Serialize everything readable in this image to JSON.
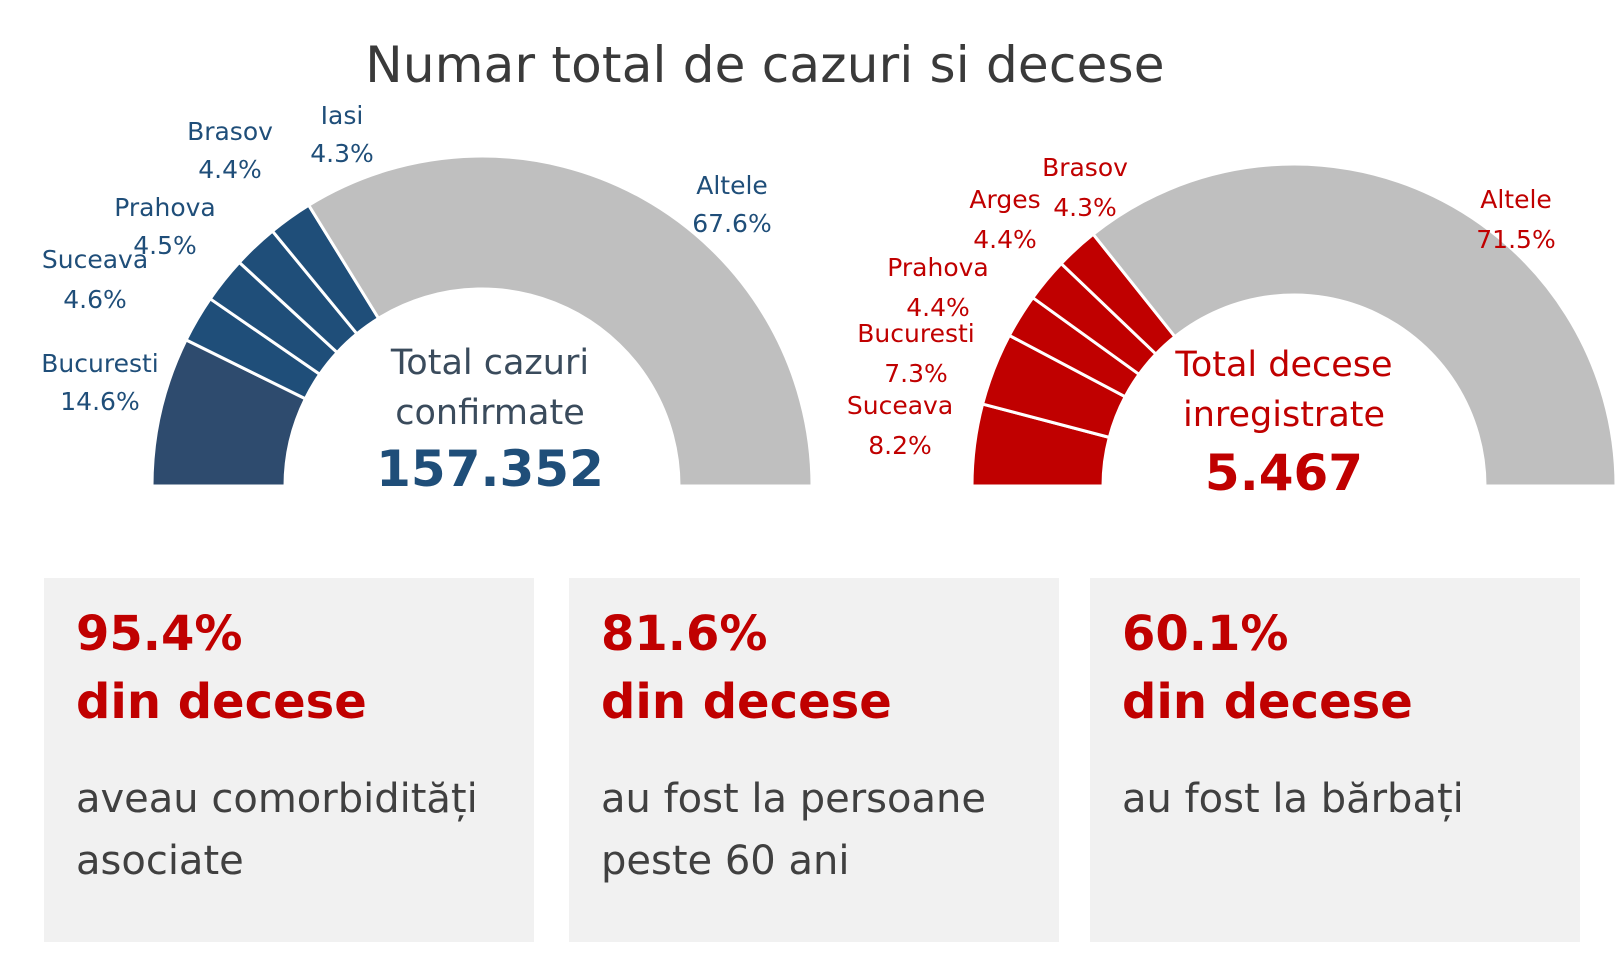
{
  "title": "Numar total de cazuri si decese",
  "chart_data": [
    {
      "type": "pie",
      "variant": "half-donut",
      "color": "#1f4e79",
      "other_color": "#bfbfbf",
      "slices": [
        {
          "label": "Bucuresti",
          "value": 14.6,
          "display": "14.6%"
        },
        {
          "label": "Suceava",
          "value": 4.6,
          "display": "4.6%"
        },
        {
          "label": "Prahova",
          "value": 4.5,
          "display": "4.5%"
        },
        {
          "label": "Brasov",
          "value": 4.4,
          "display": "4.4%"
        },
        {
          "label": "Iasi",
          "value": 4.3,
          "display": "4.3%"
        },
        {
          "label": "Altele",
          "value": 67.6,
          "display": "67.6%"
        }
      ],
      "center_label_line1": "Total cazuri",
      "center_label_line2": "confirmate",
      "center_value": "157.352"
    },
    {
      "type": "pie",
      "variant": "half-donut",
      "color": "#c00000",
      "other_color": "#bfbfbf",
      "slices": [
        {
          "label": "Suceava",
          "value": 8.2,
          "display": "8.2%"
        },
        {
          "label": "Bucuresti",
          "value": 7.3,
          "display": "7.3%"
        },
        {
          "label": "Prahova",
          "value": 4.4,
          "display": "4.4%"
        },
        {
          "label": "Arges",
          "value": 4.4,
          "display": "4.4%"
        },
        {
          "label": "Brasov",
          "value": 4.3,
          "display": "4.3%"
        },
        {
          "label": "Altele",
          "value": 71.5,
          "display": "71.5%"
        }
      ],
      "center_label_line1": "Total decese",
      "center_label_line2": "inregistrate",
      "center_value": "5.467"
    }
  ],
  "cards": [
    {
      "pct": "95.4%",
      "sub": "din decese",
      "desc": "aveau comorbidități asociate"
    },
    {
      "pct": "81.6%",
      "sub": "din decese",
      "desc": "au fost la persoane peste 60 ani"
    },
    {
      "pct": "60.1%",
      "sub": "din decese",
      "desc": "au fost la bărbați"
    }
  ],
  "colors": {
    "accent_red": "#c00000",
    "navy": "#1f4e79",
    "gray": "#bfbfbf",
    "card_bg": "#f1f1f1"
  }
}
